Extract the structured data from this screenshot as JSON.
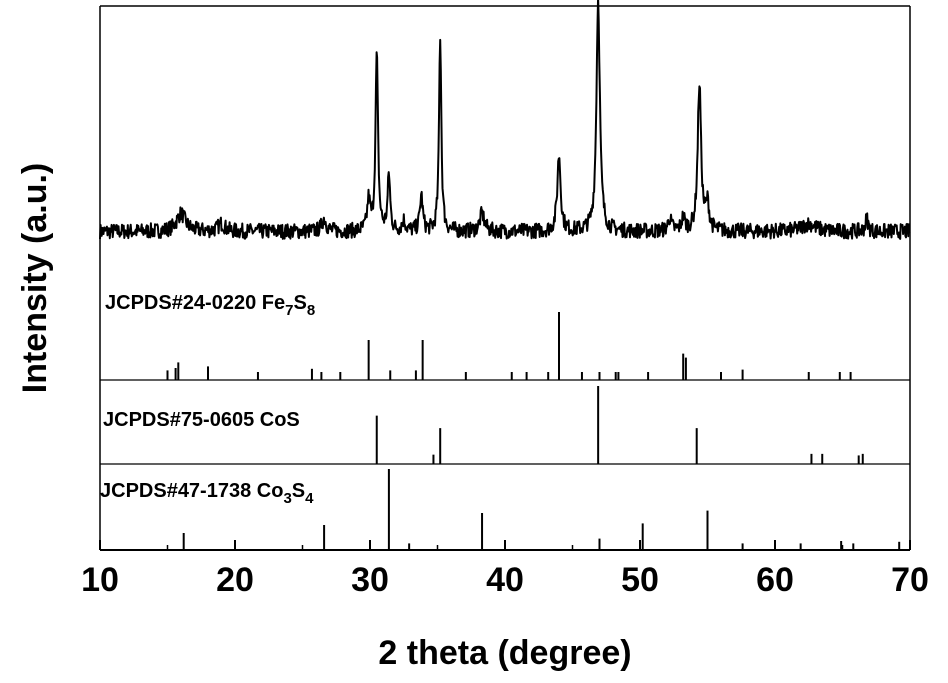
{
  "chart_data": {
    "type": "line",
    "xlabel": "2 theta (degree)",
    "ylabel": "Intensity (a.u.)",
    "xlim": [
      10,
      70
    ],
    "x_ticks": [
      10,
      20,
      30,
      40,
      50,
      60,
      70
    ],
    "x_tick_labels": [
      "10",
      "20",
      "30",
      "40",
      "50",
      "60",
      "70"
    ],
    "grid": false,
    "legend": "none",
    "measured_pattern": {
      "baseline": 0.12,
      "noise": 0.03,
      "peaks": [
        {
          "x": 16.0,
          "height": 0.07,
          "width": 0.8
        },
        {
          "x": 19.0,
          "height": 0.03,
          "width": 0.6
        },
        {
          "x": 26.6,
          "height": 0.05,
          "width": 0.4
        },
        {
          "x": 29.9,
          "height": 0.12,
          "width": 0.25
        },
        {
          "x": 30.5,
          "height": 0.7,
          "width": 0.22
        },
        {
          "x": 31.4,
          "height": 0.22,
          "width": 0.22
        },
        {
          "x": 32.5,
          "height": 0.04,
          "width": 0.3
        },
        {
          "x": 33.8,
          "height": 0.14,
          "width": 0.25
        },
        {
          "x": 35.2,
          "height": 0.77,
          "width": 0.2
        },
        {
          "x": 38.3,
          "height": 0.07,
          "width": 0.4
        },
        {
          "x": 44.0,
          "height": 0.3,
          "width": 0.3
        },
        {
          "x": 46.9,
          "height": 0.92,
          "width": 0.3
        },
        {
          "x": 52.2,
          "height": 0.05,
          "width": 0.3
        },
        {
          "x": 53.2,
          "height": 0.05,
          "width": 0.3
        },
        {
          "x": 54.4,
          "height": 0.58,
          "width": 0.3
        },
        {
          "x": 55.0,
          "height": 0.1,
          "width": 0.3
        },
        {
          "x": 62.5,
          "height": 0.03,
          "width": 1.2
        },
        {
          "x": 66.8,
          "height": 0.05,
          "width": 0.25
        }
      ]
    },
    "reference_patterns": [
      {
        "label": "JCPDS#24-0220 Fe",
        "formula": [
          {
            "t": "Fe",
            "sub": false
          },
          {
            "t": "7",
            "sub": true
          },
          {
            "t": "S",
            "sub": false
          },
          {
            "t": "8",
            "sub": true
          }
        ],
        "label_prefix": "JCPDS#24-0220 ",
        "lines": [
          [
            15.0,
            0.12
          ],
          [
            15.6,
            0.15
          ],
          [
            15.8,
            0.22
          ],
          [
            18.0,
            0.17
          ],
          [
            21.7,
            0.1
          ],
          [
            25.7,
            0.14
          ],
          [
            26.4,
            0.1
          ],
          [
            27.8,
            0.1
          ],
          [
            29.9,
            0.5
          ],
          [
            31.5,
            0.12
          ],
          [
            33.4,
            0.12
          ],
          [
            33.9,
            0.5
          ],
          [
            37.1,
            0.1
          ],
          [
            40.5,
            0.1
          ],
          [
            41.6,
            0.1
          ],
          [
            43.2,
            0.1
          ],
          [
            44.0,
            0.85
          ],
          [
            45.7,
            0.1
          ],
          [
            47.0,
            0.1
          ],
          [
            48.2,
            0.1
          ],
          [
            48.4,
            0.1
          ],
          [
            50.6,
            0.1
          ],
          [
            53.2,
            0.33
          ],
          [
            53.4,
            0.28
          ],
          [
            56.0,
            0.1
          ],
          [
            57.6,
            0.13
          ],
          [
            62.5,
            0.1
          ],
          [
            64.8,
            0.1
          ],
          [
            65.6,
            0.1
          ]
        ]
      },
      {
        "label_prefix": "JCPDS#75-0605 CoS",
        "formula": [],
        "lines": [
          [
            30.5,
            0.62
          ],
          [
            34.7,
            0.12
          ],
          [
            35.2,
            0.46
          ],
          [
            46.9,
            1.0
          ],
          [
            54.2,
            0.46
          ],
          [
            62.7,
            0.13
          ],
          [
            63.5,
            0.13
          ],
          [
            66.2,
            0.11
          ],
          [
            66.5,
            0.13
          ]
        ]
      },
      {
        "label_prefix": "JCPDS#47-1738 ",
        "formula": [
          {
            "t": "Co",
            "sub": false
          },
          {
            "t": "3",
            "sub": true
          },
          {
            "t": "S",
            "sub": false
          },
          {
            "t": "4",
            "sub": true
          }
        ],
        "lines": [
          [
            16.2,
            0.2
          ],
          [
            26.6,
            0.3
          ],
          [
            31.4,
            1.0
          ],
          [
            32.9,
            0.07
          ],
          [
            38.3,
            0.45
          ],
          [
            47.0,
            0.13
          ],
          [
            50.2,
            0.32
          ],
          [
            55.0,
            0.48
          ],
          [
            57.6,
            0.07
          ],
          [
            61.9,
            0.07
          ],
          [
            64.9,
            0.1
          ],
          [
            65.8,
            0.07
          ],
          [
            69.2,
            0.09
          ]
        ]
      }
    ]
  },
  "colors": {
    "line": "#000000",
    "background": "#ffffff"
  }
}
